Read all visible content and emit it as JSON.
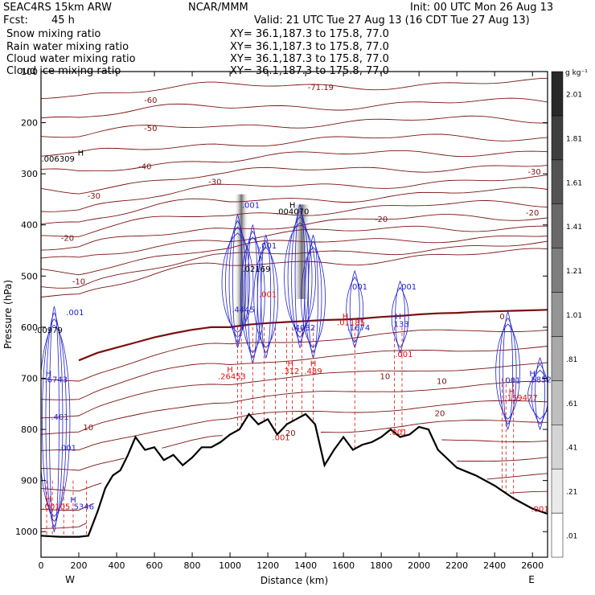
{
  "header": {
    "model": "SEAC4RS 15km ARW",
    "org": "NCAR/MMM",
    "init": "Init: 00 UTC Mon 26 Aug 13",
    "fcst_label": "Fcst:",
    "fcst_value": "45 h",
    "valid": "Valid: 21 UTC Tue 27 Aug 13 (16 CDT Tue 27 Aug 13)"
  },
  "legend": [
    {
      "name": "Snow mixing ratio",
      "xy": "XY=  36.1,187.3 to 175.8, 77.0",
      "color": "#000000"
    },
    {
      "name": "Rain water mixing ratio",
      "xy": "XY=  36.1,187.3 to 175.8, 77.0",
      "color": "#dd1111"
    },
    {
      "name": "Cloud water mixing ratio",
      "xy": "XY=  36.1,187.3 to 175.8, 77.0",
      "color": "#2222cc"
    },
    {
      "name": "Cloud ice mixing ratio",
      "xy": "XY=  36.1,187.3 to 175.8, 77.0",
      "color": "#000000"
    }
  ],
  "chart_data": {
    "type": "line",
    "xlabel": "Distance (km)",
    "ylabel": "Pressure (hPa)",
    "xlim": [
      0,
      2680
    ],
    "ylim": [
      1050,
      100
    ],
    "x_ticks": [
      0,
      200,
      400,
      600,
      800,
      1000,
      1200,
      1400,
      1600,
      1800,
      2000,
      2200,
      2400,
      2600
    ],
    "y_ticks": [
      1000,
      900,
      800,
      700,
      600,
      500,
      400,
      300,
      200,
      100
    ],
    "x_tick_labels": [
      "0",
      "200",
      "400",
      "600",
      "800",
      "1000",
      "1200",
      "1400",
      "1600",
      "1800",
      "2000",
      "2200",
      "2400",
      "2600"
    ],
    "y_tick_labels": [
      "1000",
      "900",
      "800",
      "700",
      "600",
      "500",
      "400",
      "300",
      "200",
      "100"
    ],
    "x_end_labels": {
      "left": "W",
      "right": "E"
    },
    "colorbar": {
      "unit": "g kg⁻¹",
      "levels": [
        0.01,
        0.21,
        0.41,
        0.61,
        0.81,
        1.01,
        1.21,
        1.41,
        1.61,
        1.81,
        2.01
      ],
      "labels": [
        ".01",
        ".21",
        ".41",
        ".61",
        ".81",
        "1.01",
        "1.21",
        "1.41",
        "1.61",
        "1.81",
        "2.01"
      ]
    },
    "terrain_surface": {
      "x": [
        0,
        100,
        200,
        250,
        300,
        340,
        380,
        420,
        460,
        500,
        550,
        600,
        650,
        700,
        750,
        800,
        850,
        900,
        950,
        1000,
        1050,
        1100,
        1150,
        1200,
        1250,
        1300,
        1350,
        1400,
        1450,
        1500,
        1550,
        1600,
        1650,
        1700,
        1750,
        1800,
        1850,
        1900,
        1950,
        2000,
        2050,
        2100,
        2200,
        2300,
        2400,
        2500,
        2600,
        2680
      ],
      "p": [
        1008,
        1010,
        1010,
        1008,
        960,
        915,
        890,
        880,
        850,
        815,
        840,
        835,
        860,
        850,
        870,
        855,
        835,
        835,
        825,
        810,
        800,
        770,
        790,
        780,
        810,
        790,
        780,
        770,
        790,
        870,
        840,
        815,
        840,
        830,
        825,
        815,
        800,
        815,
        810,
        795,
        800,
        840,
        875,
        890,
        910,
        935,
        955,
        965
      ]
    },
    "temperature_contours": {
      "unit": "degC",
      "labels": [
        {
          "text": "-71.19",
          "x": 1480,
          "p": 130
        },
        {
          "text": "-60",
          "x": 580,
          "p": 155
        },
        {
          "text": "-50",
          "x": 580,
          "p": 210
        },
        {
          "text": "-40",
          "x": 550,
          "p": 285
        },
        {
          "text": "-30",
          "x": 280,
          "p": 342
        },
        {
          "text": "-30",
          "x": 920,
          "p": 315
        },
        {
          "text": "-30",
          "x": 2610,
          "p": 295
        },
        {
          "text": "-20",
          "x": 140,
          "p": 425
        },
        {
          "text": "-20",
          "x": 1800,
          "p": 388
        },
        {
          "text": "-20",
          "x": 2600,
          "p": 375
        },
        {
          "text": "-10",
          "x": 200,
          "p": 510
        },
        {
          "text": "0",
          "x": 2440,
          "p": 578
        },
        {
          "text": "10",
          "x": 1820,
          "p": 695
        },
        {
          "text": "10",
          "x": 2120,
          "p": 705
        },
        {
          "text": "10",
          "x": 250,
          "p": 795
        },
        {
          "text": "20",
          "x": 2110,
          "p": 768
        },
        {
          "text": "20",
          "x": 1320,
          "p": 806
        }
      ]
    },
    "zero_isotherm": {
      "x": [
        200,
        300,
        400,
        500,
        600,
        700,
        800,
        900,
        1000,
        1100,
        1200,
        1300,
        1400,
        1500,
        1600,
        1700,
        1800,
        1900,
        2000,
        2100,
        2200,
        2300,
        2400,
        2500,
        2600,
        2680
      ],
      "p": [
        665,
        650,
        640,
        630,
        620,
        612,
        605,
        600,
        600,
        595,
        592,
        590,
        588,
        586,
        585,
        583,
        580,
        578,
        575,
        573,
        572,
        570,
        569,
        568,
        567,
        566
      ]
    },
    "field_labels": [
      {
        "text": "H",
        "x": 210,
        "p": 258,
        "color": "#000000"
      },
      {
        "text": ".006309",
        "x": 90,
        "p": 270,
        "color": "#000000"
      },
      {
        "text": ".001",
        "x": 1110,
        "p": 360,
        "color": "#2222cc"
      },
      {
        "text": "H",
        "x": 1330,
        "p": 360,
        "color": "#000000"
      },
      {
        "text": ".004070",
        "x": 1330,
        "p": 373,
        "color": "#000000"
      },
      {
        "text": ".001",
        "x": 1200,
        "p": 440,
        "color": "#2222cc"
      },
      {
        "text": ".02169",
        "x": 1140,
        "p": 485,
        "color": "#000000"
      },
      {
        "text": ".001",
        "x": 1200,
        "p": 535,
        "color": "#dd1111"
      },
      {
        "text": ".4445",
        "x": 1070,
        "p": 565,
        "color": "#2222cc"
      },
      {
        "text": ".4032",
        "x": 1390,
        "p": 600,
        "color": "#2222cc"
      },
      {
        "text": "H",
        "x": 1610,
        "p": 578,
        "color": "#dd1111"
      },
      {
        "text": ".01185",
        "x": 1640,
        "p": 590,
        "color": "#dd1111"
      },
      {
        "text": ".1674",
        "x": 1680,
        "p": 600,
        "color": "#2222cc"
      },
      {
        "text": "H",
        "x": 1890,
        "p": 578,
        "color": "#2222cc"
      },
      {
        "text": ".133",
        "x": 1900,
        "p": 593,
        "color": "#2222cc"
      },
      {
        "text": ".001",
        "x": 1680,
        "p": 520,
        "color": "#2222cc"
      },
      {
        "text": ".001",
        "x": 1940,
        "p": 520,
        "color": "#2222cc"
      },
      {
        "text": ".001",
        "x": 1920,
        "p": 652,
        "color": "#dd1111"
      },
      {
        "text": "H",
        "x": 1000,
        "p": 682,
        "color": "#dd1111"
      },
      {
        "text": ".26453",
        "x": 1010,
        "p": 695,
        "color": "#dd1111"
      },
      {
        "text": "H",
        "x": 1320,
        "p": 670,
        "color": "#dd1111"
      },
      {
        "text": ".312",
        "x": 1320,
        "p": 685,
        "color": "#dd1111"
      },
      {
        "text": "H",
        "x": 1440,
        "p": 670,
        "color": "#dd1111"
      },
      {
        "text": ".489",
        "x": 1440,
        "p": 685,
        "color": "#dd1111"
      },
      {
        "text": ".001",
        "x": 1270,
        "p": 815,
        "color": "#dd1111"
      },
      {
        "text": ".001",
        "x": 1890,
        "p": 805,
        "color": "#dd1111"
      },
      {
        "text": ".001",
        "x": 180,
        "p": 570,
        "color": "#2222cc"
      },
      {
        "text": ".00979",
        "x": 40,
        "p": 605,
        "color": "#000000"
      },
      {
        "text": "H",
        "x": 40,
        "p": 690,
        "color": "#2222cc"
      },
      {
        "text": ".6743",
        "x": 80,
        "p": 702,
        "color": "#2222cc"
      },
      {
        "text": ".401",
        "x": 100,
        "p": 775,
        "color": "#2222cc"
      },
      {
        "text": ".001",
        "x": 140,
        "p": 835,
        "color": "#2222cc"
      },
      {
        "text": "H",
        "x": 40,
        "p": 935,
        "color": "#dd1111"
      },
      {
        "text": ".00105",
        "x": 80,
        "p": 950,
        "color": "#dd1111"
      },
      {
        "text": "H",
        "x": 170,
        "p": 937,
        "color": "#2222cc"
      },
      {
        "text": ".5346",
        "x": 220,
        "p": 950,
        "color": "#2222cc"
      },
      {
        "text": ".001",
        "x": 2490,
        "p": 703,
        "color": "#2222cc"
      },
      {
        "text": "H",
        "x": 2490,
        "p": 725,
        "color": "#dd1111"
      },
      {
        "text": ".159477",
        "x": 2540,
        "p": 737,
        "color": "#dd1111"
      },
      {
        "text": "H",
        "x": 2600,
        "p": 690,
        "color": "#2222cc"
      },
      {
        "text": ".5852",
        "x": 2640,
        "p": 702,
        "color": "#2222cc"
      },
      {
        "text": ".001",
        "x": 2640,
        "p": 955,
        "color": "#dd1111"
      }
    ]
  }
}
